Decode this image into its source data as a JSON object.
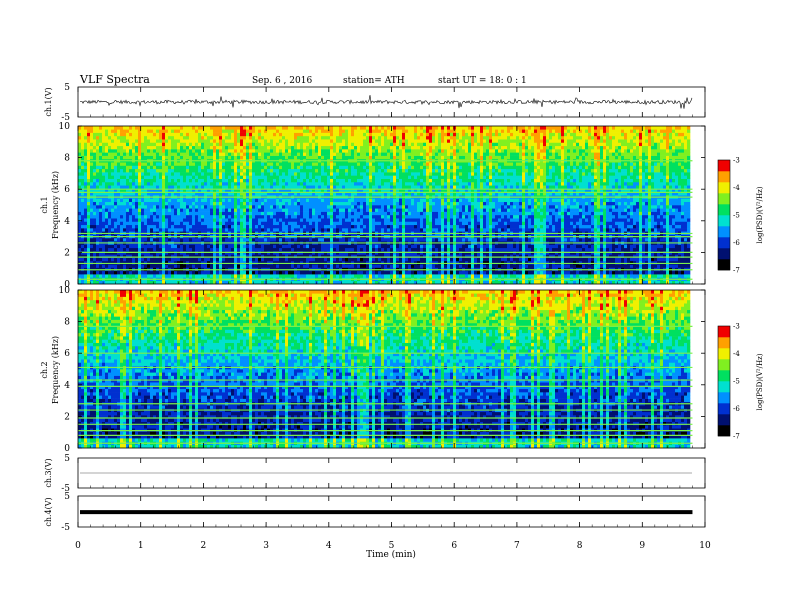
{
  "header": {
    "title": "VLF  Spectra",
    "date": "Sep. 6  , 2016",
    "station": "station= ATH",
    "start": "start  UT =   18: 0  : 1"
  },
  "chart_data": [
    {
      "type": "line",
      "panel": "ch1",
      "ylabel": "ch.1(V)",
      "ylim": [
        -5,
        5
      ],
      "yticks": [
        "5",
        "-5"
      ],
      "baseline_v": 0.0,
      "noise_v": 0.6,
      "color": "#000000"
    },
    {
      "type": "heatmap",
      "panel": "ch1-spectrogram",
      "ylabel": "ch.1",
      "ylabel2": "Frequency  (kHz)",
      "ylim_khz": [
        0,
        10
      ],
      "yticks": [
        "0",
        "2",
        "4",
        "6",
        "8",
        "10"
      ],
      "xlim_min": [
        0,
        10
      ],
      "line_bands_khz": [
        0.3,
        0.9,
        1.3,
        1.7,
        2.0,
        2.6,
        3.0,
        3.2,
        5.5,
        5.8,
        6.0,
        7.8
      ],
      "colorbar": {
        "label": "log(PSD)(V²/Hz)",
        "range": [
          -7,
          -3
        ],
        "ticks": [
          "-3",
          "-4",
          "-5",
          "-6",
          "-7"
        ]
      }
    },
    {
      "type": "heatmap",
      "panel": "ch2-spectrogram",
      "ylabel": "ch.2",
      "ylabel2": "Frequency  (kHz)",
      "ylim_khz": [
        0,
        10
      ],
      "yticks": [
        "0",
        "2",
        "4",
        "6",
        "8",
        "10"
      ],
      "xlim_min": [
        0,
        10
      ],
      "line_bands_khz": [
        0.3,
        0.8,
        1.1,
        1.5,
        1.9,
        2.4,
        2.8,
        3.9,
        4.3,
        5.1,
        6.0,
        7.7
      ],
      "colorbar": {
        "label": "log(PSD)(V²/Hz)",
        "range": [
          -7,
          -3
        ],
        "ticks": [
          "-3",
          "-4",
          "-5",
          "-6",
          "-7"
        ]
      }
    },
    {
      "type": "line",
      "panel": "ch3",
      "ylabel": "ch.3(V)",
      "ylim": [
        -5,
        5
      ],
      "yticks": [
        "5",
        "-5"
      ],
      "baseline_v": 0.0,
      "noise_v": 0.0,
      "color": "#555555"
    },
    {
      "type": "line",
      "panel": "ch4",
      "ylabel": "ch.4(V)",
      "ylim": [
        -5,
        5
      ],
      "yticks": [
        "5",
        "-5"
      ],
      "baseline_v": -0.2,
      "noise_v": 0.0,
      "color": "#000000"
    }
  ],
  "xaxis": {
    "label": "Time  (min)",
    "xlim": [
      0,
      10
    ],
    "data_end_min": 9.8,
    "ticks": [
      "0",
      "1",
      "2",
      "3",
      "4",
      "5",
      "6",
      "7",
      "8",
      "9",
      "10"
    ]
  },
  "colors": {
    "scale": [
      "#000000",
      "#001070",
      "#0030d0",
      "#0090ff",
      "#00e0d0",
      "#00e060",
      "#80f020",
      "#f0f000",
      "#ffa000",
      "#f00000",
      "#ffffff"
    ]
  }
}
